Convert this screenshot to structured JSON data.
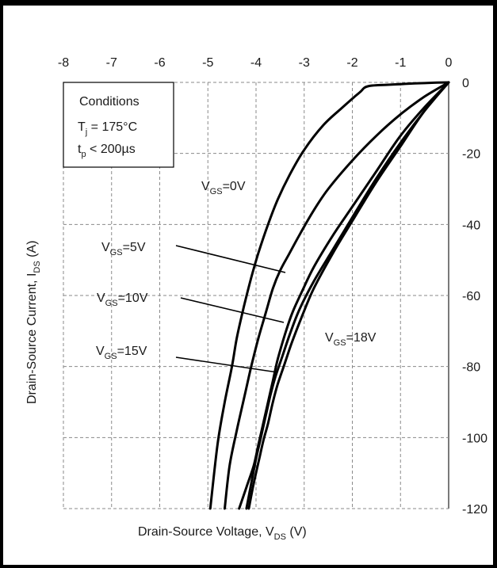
{
  "chart_data": {
    "type": "line",
    "title": "",
    "xlabel": "Drain-Source Voltage,  V",
    "xlabel_sub": "DS",
    "xlabel_unit": " (V)",
    "ylabel": "Drain-Source Current, I",
    "ylabel_sub": "DS",
    "ylabel_unit": " (A)",
    "xlim": [
      -8,
      0
    ],
    "ylim": [
      -120,
      0
    ],
    "x_ticks": [
      "-8",
      "-7",
      "-6",
      "-5",
      "-4",
      "-3",
      "-2",
      "-1",
      "0"
    ],
    "y_ticks": [
      "0",
      "-20",
      "-40",
      "-60",
      "-80",
      "-100",
      "-120"
    ],
    "x_axis_position": "top",
    "y_axis_position": "right",
    "grid": true,
    "conditions": {
      "heading": "Conditions",
      "line1_main": "T",
      "line1_sub": "j",
      "line1_rest": " = 175°C",
      "line2_main": "t",
      "line2_sub": "p",
      "line2_rest": " < 200µs"
    },
    "series": [
      {
        "name": "VGS=0V",
        "label_main": "V",
        "label_sub": "GS",
        "label_rest": "=0V",
        "x": [
          0,
          -0.3,
          -0.7,
          -1.0,
          -1.3,
          -1.5,
          -1.65,
          -1.75,
          -1.82,
          -1.95,
          -2.2,
          -2.6,
          -3.0,
          -3.3,
          -3.55,
          -3.75,
          -3.95,
          -4.1,
          -4.25,
          -4.4,
          -4.5,
          -4.65,
          -4.8,
          -4.95
        ],
        "y": [
          0,
          -0.1,
          -0.3,
          -0.5,
          -0.7,
          -0.8,
          -1.0,
          -1.5,
          -2.5,
          -4,
          -7,
          -12,
          -19,
          -26,
          -33,
          -40,
          -48,
          -55,
          -63,
          -72,
          -80,
          -90,
          -102,
          -120
        ]
      },
      {
        "name": "VGS=5V",
        "label_main": "V",
        "label_sub": "GS",
        "label_rest": "=5V",
        "x": [
          0,
          -0.5,
          -1.0,
          -1.5,
          -2.0,
          -2.5,
          -2.8,
          -3.1,
          -3.3,
          -3.5,
          -3.65,
          -3.8,
          -3.95,
          -4.1,
          -4.25,
          -4.4,
          -4.55,
          -4.65
        ],
        "y": [
          0,
          -4,
          -9,
          -15,
          -22,
          -30,
          -36,
          -43,
          -48,
          -53,
          -58,
          -65,
          -72,
          -80,
          -89,
          -98,
          -108,
          -120
        ]
      },
      {
        "name": "VGS=10V",
        "label_main": "V",
        "label_sub": "GS",
        "label_rest": "=10V",
        "x": [
          0,
          -0.5,
          -1.0,
          -1.5,
          -2.0,
          -2.4,
          -2.8,
          -3.05,
          -3.25,
          -3.4,
          -3.55,
          -3.65,
          -3.75,
          -3.85,
          -3.95,
          -4.05,
          -4.2,
          -4.35
        ],
        "y": [
          0,
          -7,
          -15,
          -25,
          -35,
          -43,
          -52,
          -59,
          -65,
          -71,
          -78,
          -84,
          -90,
          -96,
          -102,
          -108,
          -114,
          -120
        ]
      },
      {
        "name": "VGS=15V",
        "label_main": "V",
        "label_sub": "GS",
        "label_rest": "=15V",
        "x": [
          0,
          -0.5,
          -1.0,
          -1.5,
          -2.0,
          -2.4,
          -2.8,
          -3.1,
          -3.3,
          -3.45,
          -3.6,
          -3.7,
          -3.8,
          -3.9,
          -4.0,
          -4.1,
          -4.2
        ],
        "y": [
          0,
          -8,
          -17,
          -27,
          -38,
          -47,
          -56,
          -64,
          -71,
          -77,
          -83,
          -88,
          -94,
          -100,
          -106,
          -113,
          -120
        ]
      },
      {
        "name": "VGS=18V",
        "label_main": "V",
        "label_sub": "GS",
        "label_rest": "=18V",
        "x": [
          0,
          -0.5,
          -1.0,
          -1.5,
          -2.0,
          -2.4,
          -2.8,
          -3.05,
          -3.25,
          -3.4,
          -3.55,
          -3.65,
          -3.75,
          -3.85,
          -3.95,
          -4.05,
          -4.15
        ],
        "y": [
          0,
          -8,
          -18,
          -28,
          -39,
          -48,
          -58,
          -66,
          -73,
          -79,
          -85,
          -90,
          -96,
          -101,
          -107,
          -113,
          -120
        ]
      }
    ]
  }
}
